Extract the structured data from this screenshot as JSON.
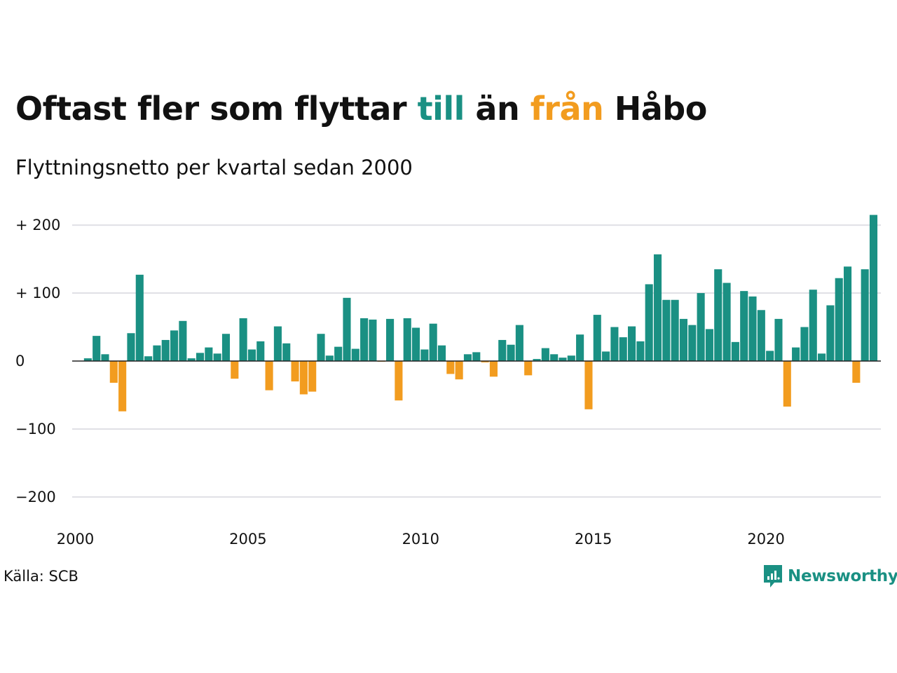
{
  "title": {
    "part1": "Oftast fler som flyttar ",
    "in_word": "till",
    "part2": " än ",
    "out_word": "från",
    "part3": " Håbo"
  },
  "subtitle": "Flyttningsnetto per kvartal sedan 2000",
  "source": "Källa: SCB",
  "brand": "Newsworthy",
  "colors": {
    "positive": "#1a9083",
    "negative": "#f29c1f",
    "grid": "#e0e0e6",
    "text": "#111111"
  },
  "chart_data": {
    "type": "bar",
    "title": "Oftast fler som flyttar till än från Håbo",
    "subtitle": "Flyttningsnetto per kvartal sedan 2000",
    "x_start_year": 2000,
    "periods_per_year": 4,
    "x_ticks": [
      "2000",
      "2005",
      "2010",
      "2015",
      "2020"
    ],
    "y_ticks": [
      {
        "value": 200,
        "label": "+ 200"
      },
      {
        "value": 100,
        "label": "+ 100"
      },
      {
        "value": 0,
        "label": "0"
      },
      {
        "value": -100,
        "label": "−100"
      },
      {
        "value": -200,
        "label": "−200"
      }
    ],
    "ylim": [
      -230,
      225
    ],
    "grid": true,
    "values": [
      0,
      4,
      37,
      10,
      -32,
      -74,
      41,
      127,
      7,
      23,
      31,
      45,
      59,
      4,
      12,
      20,
      11,
      40,
      -26,
      63,
      17,
      29,
      -43,
      51,
      26,
      -30,
      -49,
      -45,
      40,
      8,
      21,
      93,
      18,
      63,
      61,
      -1,
      62,
      -58,
      63,
      49,
      17,
      55,
      23,
      -19,
      -27,
      10,
      13,
      -2,
      -23,
      31,
      24,
      53,
      -21,
      3,
      19,
      10,
      5,
      8,
      39,
      -71,
      68,
      14,
      50,
      35,
      51,
      29,
      113,
      157,
      90,
      90,
      62,
      53,
      100,
      47,
      135,
      115,
      28,
      103,
      95,
      75,
      15,
      62,
      -67,
      20,
      50,
      105,
      11,
      82,
      122,
      139,
      -32,
      135,
      215
    ]
  }
}
